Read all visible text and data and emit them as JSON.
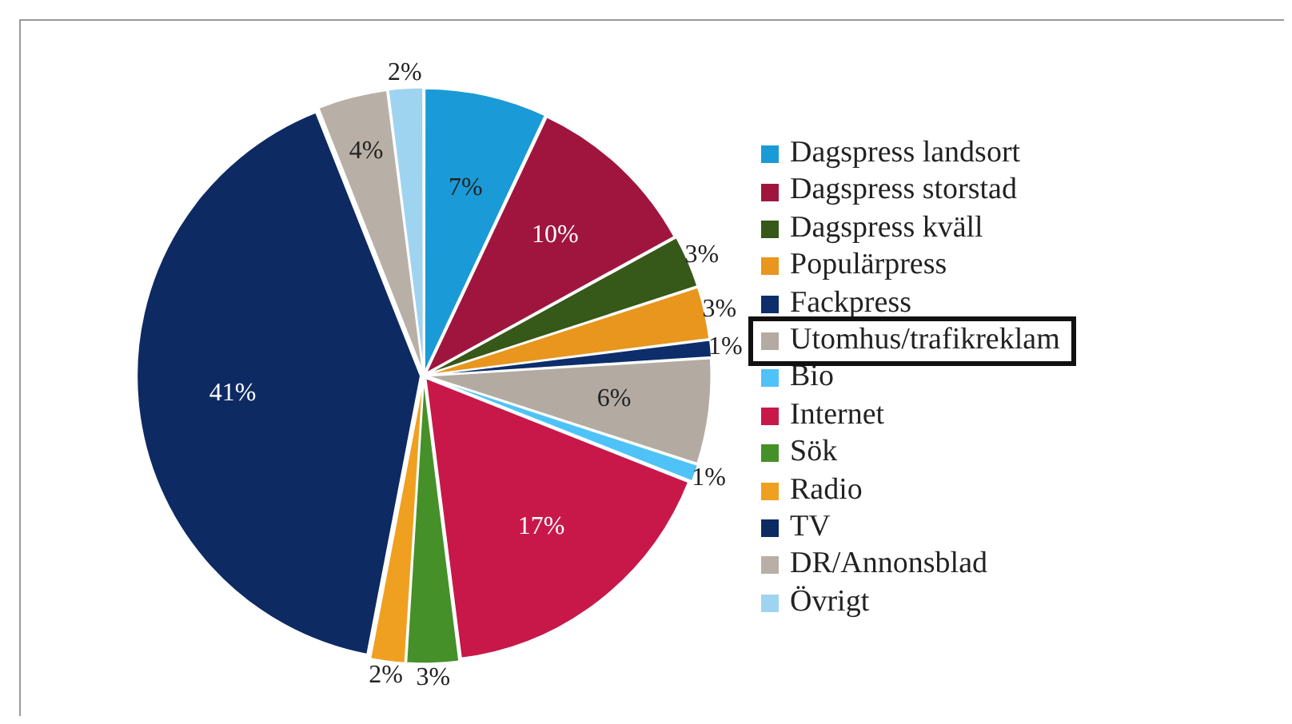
{
  "chart_data": {
    "type": "pie",
    "categories": [
      "Dagspress landsort",
      "Dagspress storstad",
      "Dagspress kväll",
      "Populärpress",
      "Fackpress",
      "Utomhus/trafikreklam",
      "Bio",
      "Internet",
      "Sök",
      "Radio",
      "TV",
      "DR/Annonsblad",
      "Övrigt"
    ],
    "values": [
      7,
      10,
      3,
      3,
      1,
      6,
      1,
      17,
      3,
      2,
      41,
      4,
      2
    ],
    "value_labels": [
      "7%",
      "10%",
      "3%",
      "3%",
      "1%",
      "6%",
      "1%",
      "17%",
      "3%",
      "2%",
      "41%",
      "4%",
      "2%"
    ],
    "colors": [
      "#1a9ad6",
      "#a0153e",
      "#365818",
      "#e8961e",
      "#0d2d6b",
      "#b3aba2",
      "#4fc3f7",
      "#c8184a",
      "#46902a",
      "#f0a020",
      "#0e2a63",
      "#b8b0a6",
      "#9fd4f0"
    ],
    "legend": "right"
  }
}
